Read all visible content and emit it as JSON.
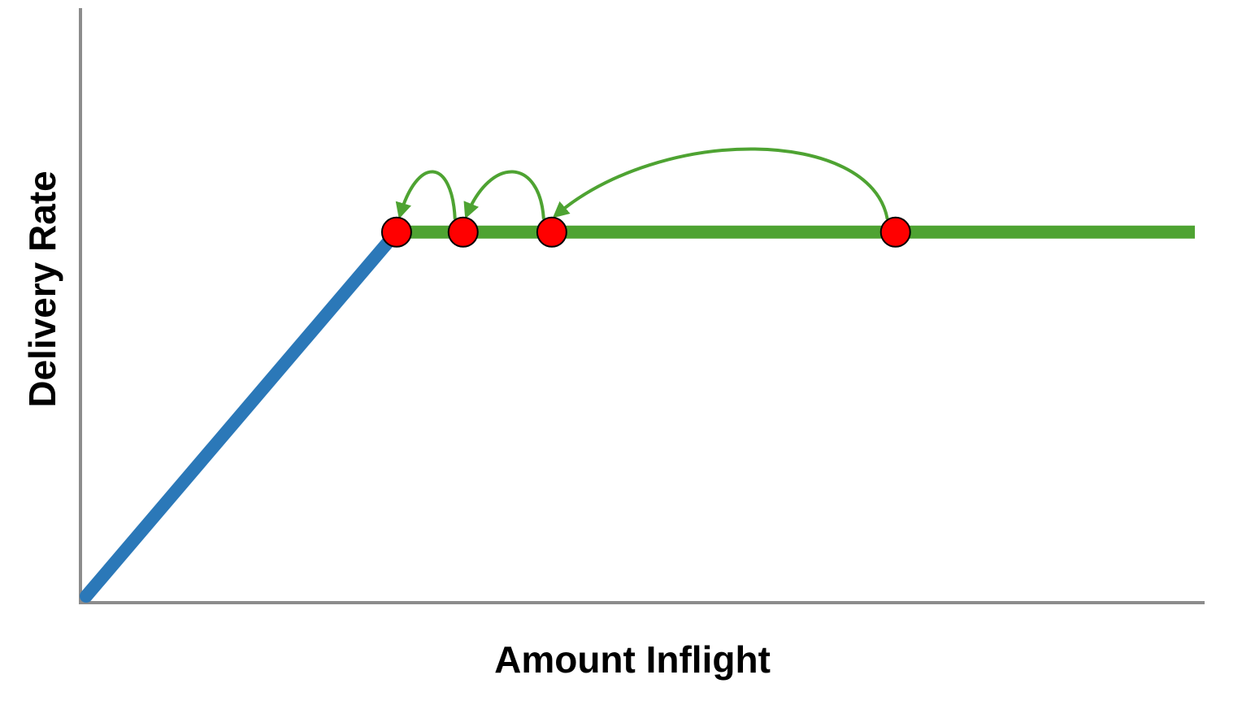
{
  "chart_data": {
    "type": "line",
    "xlabel": "Amount Inflight",
    "ylabel": "Delivery Rate",
    "xlim": [
      0,
      100
    ],
    "ylim": [
      0,
      100
    ],
    "grid": false,
    "series": [
      {
        "color": "#2B78B8",
        "x": [
          0,
          28
        ],
        "y": [
          0,
          67.5
        ]
      },
      {
        "color": "#4EA332",
        "x": [
          28,
          100
        ],
        "y": [
          67.5,
          67.5
        ]
      }
    ],
    "points": {
      "color": "#FF0000",
      "x": [
        28,
        34,
        42,
        73
      ],
      "y": [
        67.5,
        67.5,
        67.5,
        67.5
      ]
    },
    "arrows": {
      "color": "#4EA332",
      "from": [
        34,
        42,
        73
      ],
      "to": [
        28,
        34,
        42
      ]
    }
  }
}
